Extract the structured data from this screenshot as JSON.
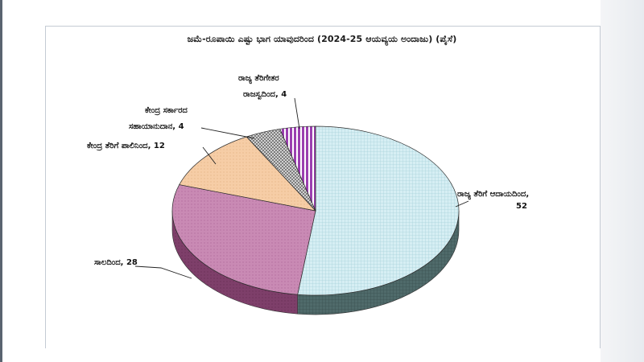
{
  "chart_data": {
    "type": "pie",
    "title": "ಜಮೆ-ರೂಪಾಯಿ ಎಷ್ಟು ಭಾಗ ಯಾವುದರಿಂದ (2024-25 ಆಯವ್ಯಯ ಅಂದಾಜು)   (ಪೈಸೆ)",
    "legend": "none",
    "slices": [
      {
        "label": "ರಾಜ್ಯ ತೆರಿಗೆ ಆದಾಯದಿಂದ, 52",
        "value": 52,
        "color": "#d6eef3",
        "pattern": "grid"
      },
      {
        "label": "ಸಾಲದಿಂದ, 28",
        "value": 28,
        "color": "#c98ab4",
        "pattern": "dots"
      },
      {
        "label": "ಕೇಂದ್ರ ತೆರಿಗೆ ಪಾಲಿನಿಂದ, 12",
        "value": 12,
        "color": "#f6cda6",
        "pattern": "dots"
      },
      {
        "label": "ಕೇಂದ್ರ ಸರ್ಕಾರದ ಸಹಾಯಾನುದಾನ, 4",
        "value": 4,
        "color": "#b9b9b9",
        "pattern": "checker"
      },
      {
        "label": "ರಾಜ್ಯ ತೆರಿಗೇತರ ರಾಜಸ್ವದಿಂದ, 4",
        "value": 4,
        "color": "#b25bc4",
        "pattern": "stripes"
      }
    ]
  },
  "labels": {
    "state_tax_line1": "ರಾಜ್ಯ ತೆರಿಗೆ ಆದಾಯದಿಂದ,",
    "state_tax_line2": "52",
    "loans": "ಸಾಲದಿಂದ, 28",
    "central_tax": "ಕೇಂದ್ರ ತೆರಿಗೆ ಪಾಲಿನಿಂದ, 12",
    "grant_line1": "ಕೇಂದ್ರ ಸರ್ಕಾರದ",
    "grant_line2": "ಸಹಾಯಾನುದಾನ, 4",
    "nontax_line1": "ರಾಜ್ಯ ತೆರಿಗೇತರ",
    "nontax_line2": "ರಾಜಸ್ವದಿಂದ, 4"
  }
}
